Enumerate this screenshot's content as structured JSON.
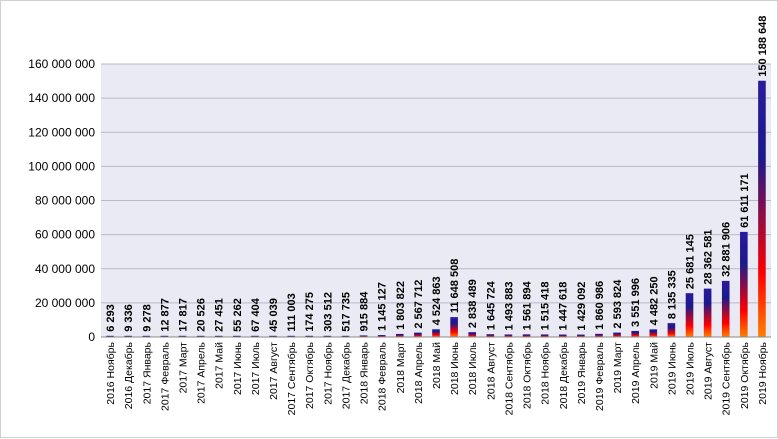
{
  "chart_data": {
    "type": "bar",
    "title": "",
    "xlabel": "",
    "ylabel": "",
    "ylim": [
      0,
      160000000
    ],
    "yticks": [
      0,
      20000000,
      40000000,
      60000000,
      80000000,
      100000000,
      120000000,
      140000000,
      160000000
    ],
    "ytick_labels": [
      "0",
      "20 000 000",
      "40 000 000",
      "60 000 000",
      "80 000 000",
      "100 000 000",
      "120 000 000",
      "140 000 000",
      "160 000 000"
    ],
    "grid": true,
    "legend": "none",
    "bar_gradient": [
      "#ff8000",
      "#ff0000",
      "#1a1a8c",
      "#2a1a9c"
    ],
    "categories": [
      "2016 Ноябрь",
      "2016 Декабрь",
      "2017 Январь",
      "2017 Февраль",
      "2017 Март",
      "2017 Апрель",
      "2017 Май",
      "2017 Июнь",
      "2017 Июль",
      "2017 Август",
      "2017 Сентябрь",
      "2017 Октябрь",
      "2017 Ноябрь",
      "2017 Декабрь",
      "2018 Январь",
      "2018 Февраль",
      "2018 Март",
      "2018 Апрель",
      "2018 Май",
      "2018 Июнь",
      "2018 Июль",
      "2018 Август",
      "2018 Сентябрь",
      "2018 Октябрь",
      "2018 Ноябрь",
      "2018 Декабрь",
      "2019 Январь",
      "2019 Февраль",
      "2019 Март",
      "2019 Апрель",
      "2019 Май",
      "2019 Июнь",
      "2019 Июль",
      "2019 Август",
      "2019 Сентябрь",
      "2019 Октябрь",
      "2019 Ноябрь"
    ],
    "values": [
      6293,
      9336,
      9278,
      12877,
      17817,
      20526,
      27451,
      55262,
      67404,
      45039,
      111003,
      174275,
      303512,
      517735,
      915884,
      1145127,
      1803822,
      2567712,
      4524863,
      11648508,
      2838489,
      1645724,
      1493883,
      1561894,
      1515418,
      1447618,
      1429092,
      1860986,
      2593824,
      3551996,
      4482250,
      8135335,
      25681145,
      28362581,
      32881906,
      61611171,
      150188648
    ],
    "value_labels": [
      "6 293",
      "9 336",
      "9 278",
      "12 877",
      "17 817",
      "20 526",
      "27 451",
      "55 262",
      "67 404",
      "45 039",
      "111 003",
      "174 275",
      "303 512",
      "517 735",
      "915 884",
      "1 145 127",
      "1 803 822",
      "2 567 712",
      "4 524 863",
      "11 648 508",
      "2 838 489",
      "1 645 724",
      "1 493 883",
      "1 561 894",
      "1 515 418",
      "1 447 618",
      "1 429 092",
      "1 860 986",
      "2 593 824",
      "3 551 996",
      "4 482 250",
      "8 135 335",
      "25 681 145",
      "28 362 581",
      "32 881 906",
      "61 611 171",
      "150 188 648"
    ]
  }
}
